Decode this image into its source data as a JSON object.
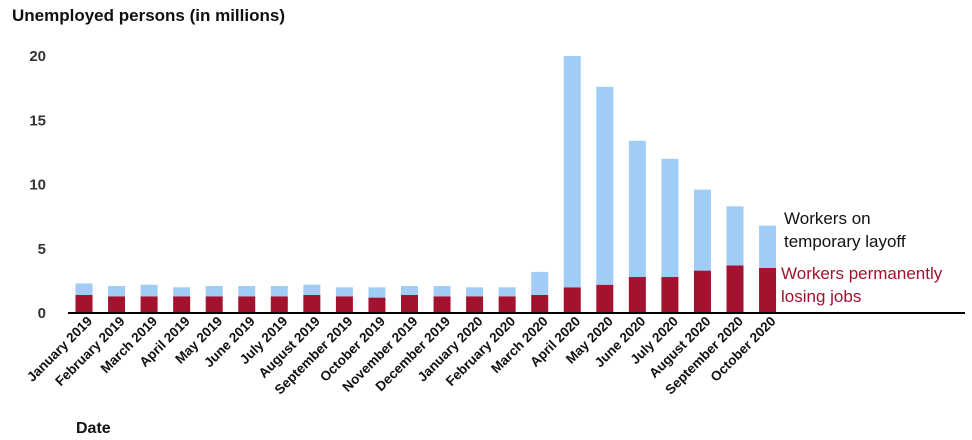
{
  "chart_data": {
    "type": "bar",
    "stacked": true,
    "ylabel": "Unemployed persons (in millions)",
    "xlabel": "Date",
    "ylim": [
      0,
      20
    ],
    "yticks": [
      "0",
      "5",
      "10",
      "15",
      "20"
    ],
    "grid": false,
    "legend_placement": "right",
    "categories": [
      "January 2019",
      "February 2019",
      "March 2019",
      "April 2019",
      "May 2019",
      "June 2019",
      "July 2019",
      "August 2019",
      "September 2019",
      "October 2019",
      "November 2019",
      "December 2019",
      "January 2020",
      "February 2020",
      "March 2020",
      "April 2020",
      "May 2020",
      "June 2020",
      "July 2020",
      "August 2020",
      "September 2020",
      "October 2020"
    ],
    "series": [
      {
        "name": "Workers permanently losing jobs",
        "color": "#a3122e",
        "values": [
          1.4,
          1.3,
          1.3,
          1.3,
          1.3,
          1.3,
          1.3,
          1.4,
          1.3,
          1.2,
          1.4,
          1.3,
          1.3,
          1.3,
          1.4,
          2.0,
          2.2,
          2.8,
          2.8,
          3.3,
          3.7,
          3.5
        ]
      },
      {
        "name": "Workers on temporary layoff",
        "color": "#9fcdf5",
        "values": [
          0.9,
          0.8,
          0.9,
          0.7,
          0.8,
          0.8,
          0.8,
          0.8,
          0.7,
          0.8,
          0.7,
          0.8,
          0.7,
          0.7,
          1.8,
          18.0,
          15.4,
          10.6,
          9.2,
          6.3,
          4.6,
          3.3
        ]
      }
    ]
  }
}
